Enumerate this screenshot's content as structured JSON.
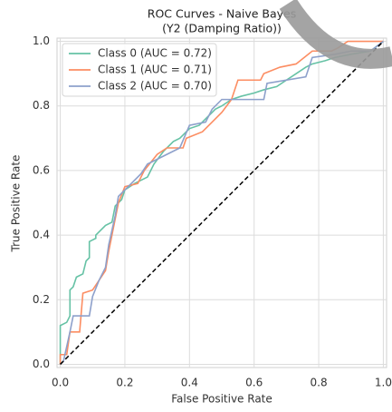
{
  "chart_data": {
    "type": "line",
    "title": [
      "ROC Curves - Naive Bayes",
      "(Y2 (Damping Ratio))"
    ],
    "xlabel": "False Positive Rate",
    "ylabel": "True Positive Rate",
    "xlim": [
      -0.01,
      1.01
    ],
    "ylim": [
      -0.01,
      1.01
    ],
    "xticks": [
      {
        "value": 0,
        "label": "0.0"
      },
      {
        "value": 0.2,
        "label": "0.2"
      },
      {
        "value": 0.4,
        "label": "0.4"
      },
      {
        "value": 0.6,
        "label": "0.6"
      },
      {
        "value": 0.8,
        "label": "0.8"
      },
      {
        "value": 1,
        "label": "1.0"
      }
    ],
    "yticks": [
      {
        "value": 0,
        "label": "0.0"
      },
      {
        "value": 0.2,
        "label": "0.2"
      },
      {
        "value": 0.4,
        "label": "0.4"
      },
      {
        "value": 0.6,
        "label": "0.6"
      },
      {
        "value": 0.8,
        "label": "0.8"
      },
      {
        "value": 1,
        "label": "1.0"
      }
    ],
    "grid": true,
    "legend": "upper left",
    "series": [
      {
        "name": "Class 0 (AUC = 0.72)",
        "color": "#66c2a5",
        "x": [
          0,
          0,
          0.02,
          0.03,
          0.03,
          0.04,
          0.05,
          0.07,
          0.08,
          0.09,
          0.09,
          0.11,
          0.11,
          0.14,
          0.16,
          0.17,
          0.19,
          0.2,
          0.23,
          0.27,
          0.29,
          0.32,
          0.35,
          0.37,
          0.38,
          0.4,
          0.43,
          0.45,
          0.48,
          0.5,
          0.53,
          0.56,
          0.6,
          0.63,
          0.67,
          0.7,
          0.73,
          0.76,
          0.78,
          0.82,
          0.85,
          0.9,
          0.96,
          1
        ],
        "values": [
          0,
          0.12,
          0.13,
          0.15,
          0.23,
          0.24,
          0.27,
          0.28,
          0.32,
          0.33,
          0.38,
          0.39,
          0.4,
          0.43,
          0.44,
          0.49,
          0.51,
          0.54,
          0.56,
          0.58,
          0.62,
          0.66,
          0.69,
          0.7,
          0.71,
          0.73,
          0.74,
          0.76,
          0.79,
          0.8,
          0.82,
          0.83,
          0.84,
          0.85,
          0.86,
          0.88,
          0.9,
          0.92,
          0.93,
          0.94,
          0.95,
          0.96,
          0.97,
          1
        ]
      },
      {
        "name": "Class 1 (AUC = 0.71)",
        "color": "#fc8d62",
        "x": [
          0,
          0,
          0.02,
          0.03,
          0.06,
          0.07,
          0.1,
          0.12,
          0.14,
          0.15,
          0.17,
          0.18,
          0.2,
          0.24,
          0.26,
          0.3,
          0.33,
          0.38,
          0.39,
          0.44,
          0.47,
          0.5,
          0.53,
          0.55,
          0.62,
          0.63,
          0.68,
          0.73,
          0.78,
          0.84,
          0.86,
          0.89,
          1
        ],
        "values": [
          0,
          0.03,
          0.03,
          0.1,
          0.1,
          0.22,
          0.23,
          0.26,
          0.29,
          0.35,
          0.45,
          0.5,
          0.55,
          0.56,
          0.6,
          0.65,
          0.67,
          0.67,
          0.7,
          0.72,
          0.75,
          0.78,
          0.82,
          0.88,
          0.88,
          0.9,
          0.92,
          0.93,
          0.97,
          0.97,
          0.98,
          1,
          1
        ]
      },
      {
        "name": "Class 2 (AUC = 0.70)",
        "color": "#8da0cb",
        "x": [
          0,
          0.01,
          0.03,
          0.04,
          0.09,
          0.1,
          0.12,
          0.14,
          0.15,
          0.17,
          0.18,
          0.21,
          0.25,
          0.27,
          0.29,
          0.37,
          0.4,
          0.45,
          0.47,
          0.5,
          0.63,
          0.64,
          0.76,
          0.78,
          0.85,
          0.9,
          0.96,
          1
        ],
        "values": [
          0,
          0.01,
          0.1,
          0.15,
          0.15,
          0.21,
          0.26,
          0.3,
          0.37,
          0.46,
          0.52,
          0.55,
          0.59,
          0.62,
          0.63,
          0.67,
          0.74,
          0.75,
          0.79,
          0.82,
          0.82,
          0.87,
          0.89,
          0.95,
          0.96,
          0.97,
          0.97,
          1
        ]
      }
    ],
    "reference_line": {
      "x": [
        0,
        1
      ],
      "values": [
        0,
        1
      ],
      "color": "#000000"
    }
  }
}
